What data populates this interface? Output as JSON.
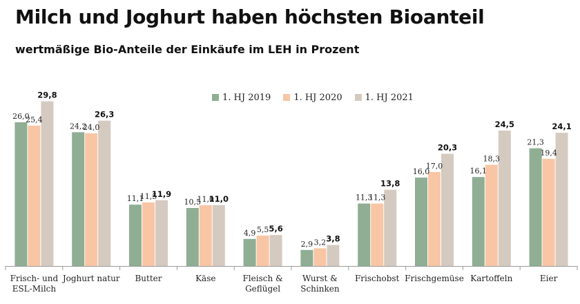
{
  "chart_data": {
    "type": "bar",
    "title": "Milch und Joghurt haben höchsten Bioanteil",
    "subtitle": "wertmäßige Bio-Anteile der Einkäufe im LEH in Prozent",
    "categories": [
      [
        "Frisch- und",
        "ESL-Milch"
      ],
      [
        "Joghurt natur"
      ],
      [
        "Butter"
      ],
      [
        "Käse"
      ],
      [
        "Fleisch &",
        "Geflügel"
      ],
      [
        "Wurst &",
        "Schinken"
      ],
      [
        "Frischobst"
      ],
      [
        "Frischgemüse"
      ],
      [
        "Kartoffeln"
      ],
      [
        "Eier"
      ]
    ],
    "series": [
      {
        "name": "1. HJ 2019",
        "color": "#8FAE94",
        "values": [
          26.0,
          24.2,
          11.1,
          10.5,
          4.9,
          2.9,
          11.3,
          16.0,
          16.1,
          21.3
        ],
        "labels": [
          "26,0",
          "24,2",
          "11,1",
          "10,5",
          "4,9",
          "2,9",
          "11,3",
          "16,0",
          "16,1",
          "21,3"
        ]
      },
      {
        "name": "1. HJ 2020",
        "color": "#F8C6A4",
        "values": [
          25.4,
          24.0,
          11.5,
          11.0,
          5.5,
          3.2,
          11.3,
          17.0,
          18.3,
          19.4
        ],
        "labels": [
          "25,4",
          "24,0",
          "11,5",
          "11,0",
          "5,5",
          "3,2",
          "11,3",
          "17,0",
          "18,3",
          "19,4"
        ]
      },
      {
        "name": "1. HJ 2021",
        "color": "#D5CAC0",
        "values": [
          29.8,
          26.3,
          11.9,
          11.0,
          5.6,
          3.8,
          13.8,
          20.3,
          24.5,
          24.1
        ],
        "labels": [
          "29,8",
          "26,3",
          "11,9",
          "11,0",
          "5,6",
          "3,8",
          "13,8",
          "20,3",
          "24,5",
          "24,1"
        ]
      }
    ],
    "legend_position": "top-center",
    "grid": false
  }
}
